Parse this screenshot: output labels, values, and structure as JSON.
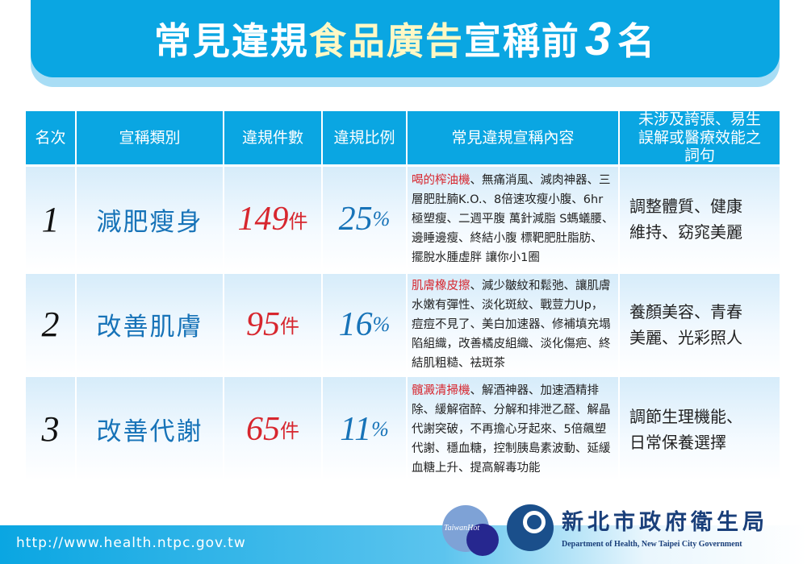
{
  "title": {
    "part1": "常見違規",
    "highlight": "食品廣告",
    "part2": "宣稱前",
    "number": "3",
    "part3": "名"
  },
  "colors": {
    "banner": "#0aa6e2",
    "highlight": "#fff8c4",
    "count": "#d7262e",
    "category": "#1773b8"
  },
  "headers": [
    "名次",
    "宣稱類別",
    "違規件數",
    "違規比例",
    "常見違規宣稱內容",
    "未涉及誇張、易生誤解或醫療效能之詞句"
  ],
  "rows": [
    {
      "rank": "1",
      "category": "減肥瘦身",
      "count": "149",
      "count_unit": "件",
      "percent": "25",
      "percent_unit": "%",
      "claim_highlight": "喝的榨油機",
      "claims": "、無痛消風、減肉神器、三層肥肚腩K.O.、8倍速攻瘦小腹、6hr極塑瘦、二週平腹 萬針減脂 S螞蟻腰、邊睡邊瘦、終結小腹 標靶肥肚脂肪、擺脫水腫虛胖 讓你小1圈",
      "safe_line1": "調整體質、健康",
      "safe_line2": "維持、窈窕美麗"
    },
    {
      "rank": "2",
      "category": "改善肌膚",
      "count": "95",
      "count_unit": "件",
      "percent": "16",
      "percent_unit": "%",
      "claim_highlight": "肌膚橡皮擦",
      "claims": "、減少皺紋和鬆弛、讓肌膚水嫩有彈性、淡化斑紋、戰荳力Up，痘痘不見了、美白加速器、修補填充塌陷組織，改善橘皮組織、淡化傷疤、終結肌粗糙、袪斑茶",
      "safe_line1": "養顏美容、青春",
      "safe_line2": "美麗、光彩照人"
    },
    {
      "rank": "3",
      "category": "改善代謝",
      "count": "65",
      "count_unit": "件",
      "percent": "11",
      "percent_unit": "%",
      "claim_highlight": "髖澱清掃機",
      "claims": "、解酒神器、加速酒精排除、緩解宿醉、分解和排泄乙醛、解晶代謝突破，不再擔心牙起來、5倍飆塑代謝、穩血糖，控制胰島素波動、延緩血糖上升、提高解毒功能",
      "safe_line1": "調節生理機能、",
      "safe_line2": "日常保養選擇"
    }
  ],
  "footer": {
    "url": "http://www.health.ntpc.gov.tw"
  },
  "logo": {
    "name_zh": "新北市政府衛生局",
    "name_en": "Department of Health, New Taipei City Government",
    "icon": "ntpc-health-logo"
  },
  "watermark": {
    "text": "TaiwanHot"
  }
}
